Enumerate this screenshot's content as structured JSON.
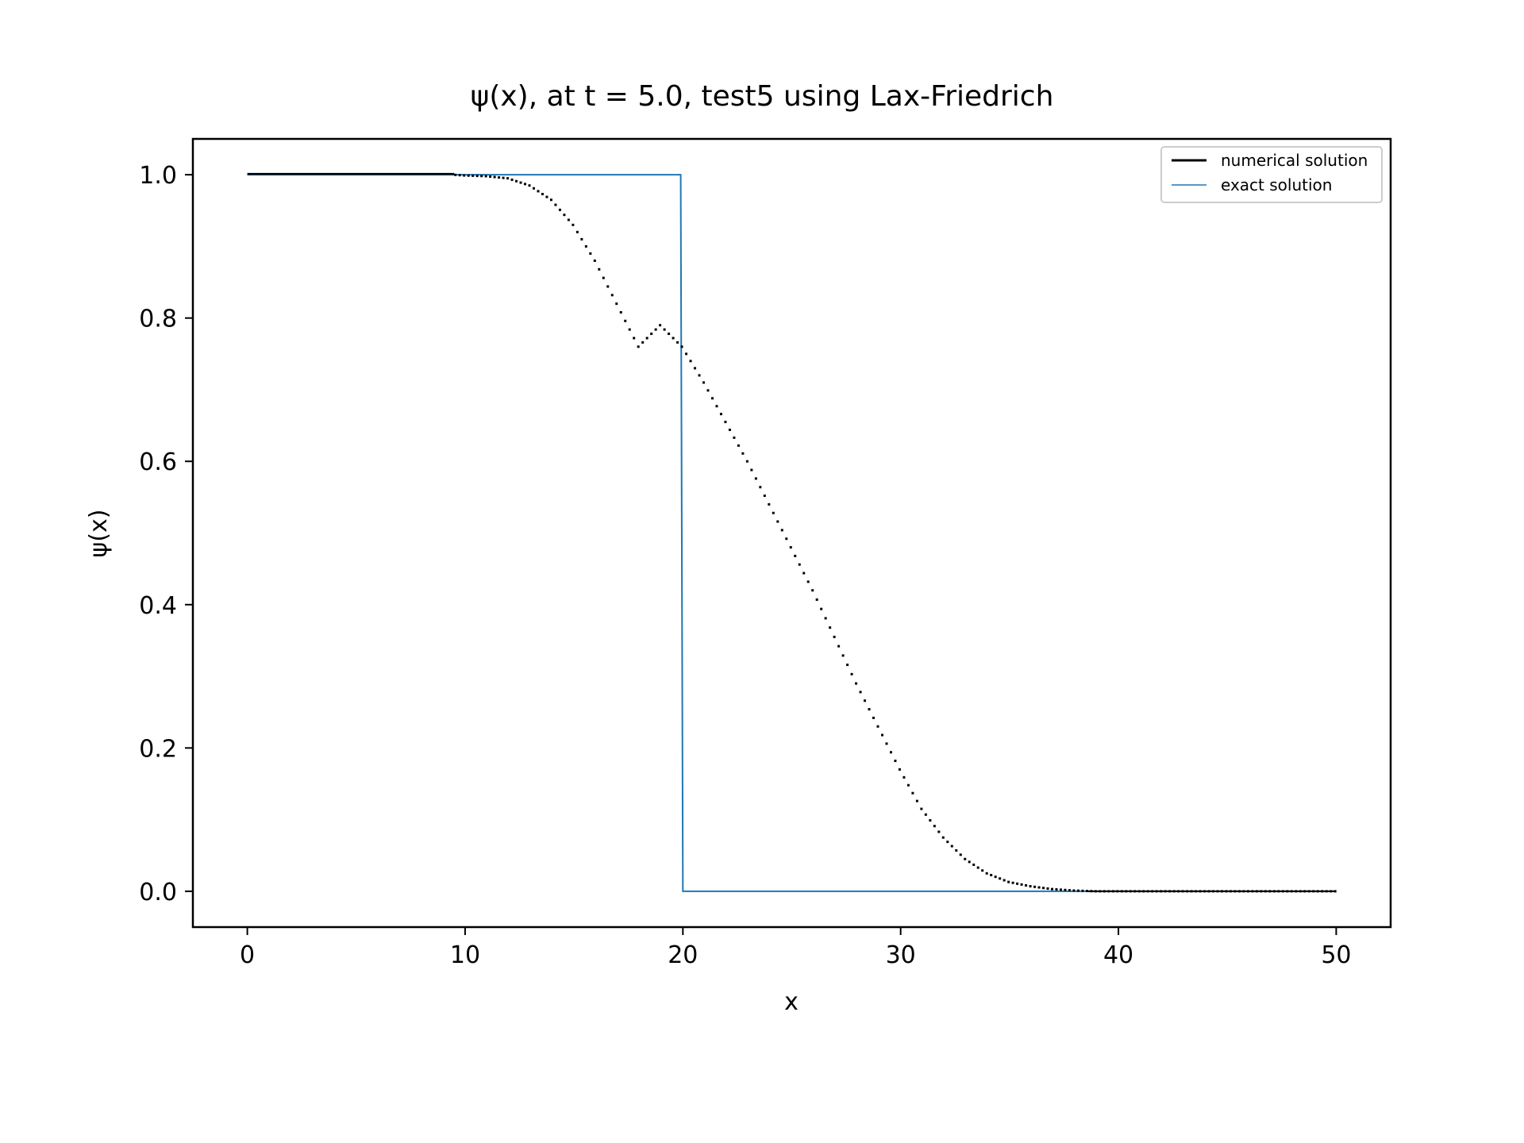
{
  "chart_data": {
    "type": "line",
    "title": "ψ(x), at t = 5.0, test5 using Lax-Friedrich",
    "xlabel": "x",
    "ylabel": "ψ(x)",
    "xlim": [
      -2.5,
      52.5
    ],
    "ylim": [
      -0.05,
      1.05
    ],
    "xticks": [
      0,
      10,
      20,
      30,
      40,
      50
    ],
    "xtick_labels": [
      "0",
      "10",
      "20",
      "30",
      "40",
      "50"
    ],
    "yticks": [
      0.0,
      0.2,
      0.4,
      0.6,
      0.8,
      1.0
    ],
    "ytick_labels": [
      "0.0",
      "0.2",
      "0.4",
      "0.6",
      "0.8",
      "1.0"
    ],
    "grid": false,
    "legend_position": "top-right",
    "series": [
      {
        "name": "numerical solution",
        "color": "#000000",
        "style": "step-dotted",
        "x": [
          0,
          9.5,
          10,
          11,
          12,
          13,
          14,
          15,
          16,
          17,
          18,
          19,
          20,
          21,
          22,
          23,
          24,
          25,
          26,
          27,
          28,
          29,
          30,
          31,
          32,
          33,
          34,
          35,
          36,
          37,
          38,
          39,
          40,
          45,
          50
        ],
        "y": [
          1.0,
          1.0,
          0.999,
          0.998,
          0.995,
          0.985,
          0.965,
          0.93,
          0.88,
          0.82,
          0.76,
          0.79,
          0.76,
          0.71,
          0.655,
          0.6,
          0.54,
          0.48,
          0.42,
          0.355,
          0.29,
          0.23,
          0.17,
          0.115,
          0.075,
          0.045,
          0.025,
          0.013,
          0.007,
          0.003,
          0.001,
          0.0,
          0.0,
          0.0,
          0.0
        ]
      },
      {
        "name": "exact solution",
        "color": "#1f77b4",
        "style": "line",
        "x": [
          0,
          19.9,
          20.0,
          50
        ],
        "y": [
          1.0,
          1.0,
          0.0,
          0.0
        ]
      }
    ]
  }
}
